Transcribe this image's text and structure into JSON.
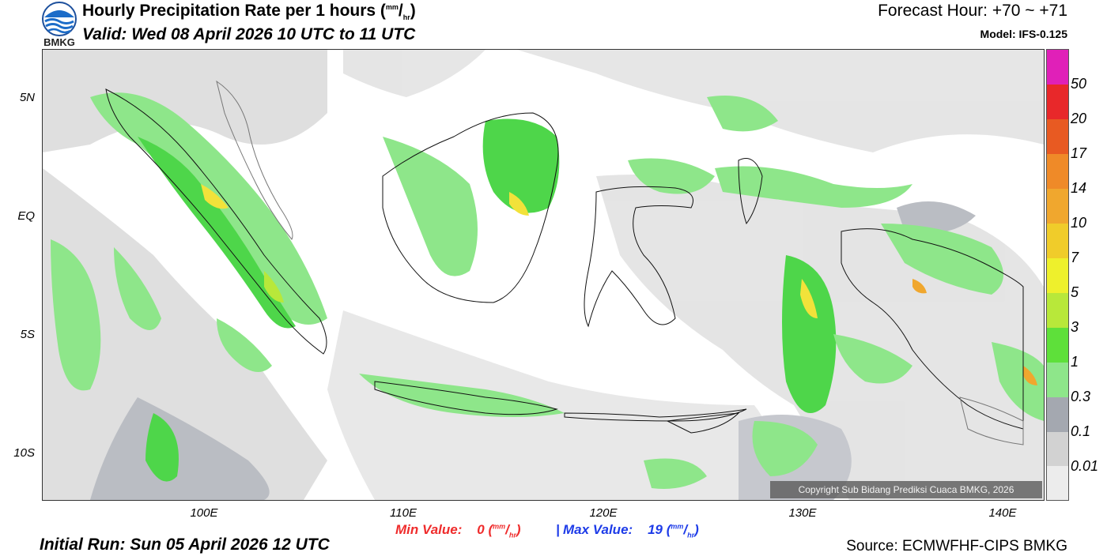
{
  "header": {
    "logo_text": "BMKG",
    "title_main": "Hourly Precipitation Rate per 1 hours (",
    "title_unit_num": "mm",
    "title_unit_sep": "/",
    "title_unit_den": "hr",
    "title_close": ")",
    "valid": "Valid: Wed 08 April 2026 10 UTC to 11 UTC",
    "forecast_hour": "Forecast Hour: +70 ~ +71",
    "model": "Model: IFS-0.125"
  },
  "map": {
    "lat_labels": [
      "5N",
      "EQ",
      "5S",
      "10S"
    ],
    "lon_labels": [
      "100E",
      "110E",
      "120E",
      "130E",
      "140E"
    ],
    "copyright": "Copyright Sub Bidang Prediksi Cuaca BMKG, 2026",
    "colors": {
      "land_outline": "#111111",
      "light_grey": "#dcdcdc",
      "grey": "#b3b6bd",
      "light_green": "#8ee68a",
      "green": "#4ed64a",
      "yellow_green": "#b8e83a",
      "yellow": "#f2e23a",
      "orange": "#f0a72e"
    }
  },
  "colorbar": {
    "labels": [
      "50",
      "20",
      "17",
      "14",
      "10",
      "7",
      "5",
      "3",
      "1",
      "0.3",
      "0.1",
      "0.01"
    ],
    "colors": [
      "#e020b8",
      "#e8282a",
      "#e85a22",
      "#ef8a28",
      "#f0a72e",
      "#f0cc2a",
      "#eef02c",
      "#b8e83a",
      "#5ee03a",
      "#8ee68a",
      "#a4a8b0",
      "#d2d2d2",
      "#ececec"
    ]
  },
  "stats": {
    "min_label": "Min Value:",
    "min_value": "0",
    "max_label": "Max Value:",
    "max_value": "19",
    "unit_num": "mm",
    "unit_den": "hr",
    "separator": "|"
  },
  "footer": {
    "initial_run": "Initial Run: Sun 05 April 2026 12 UTC",
    "source": "Source: ECMWFHF-CIPS BMKG"
  }
}
